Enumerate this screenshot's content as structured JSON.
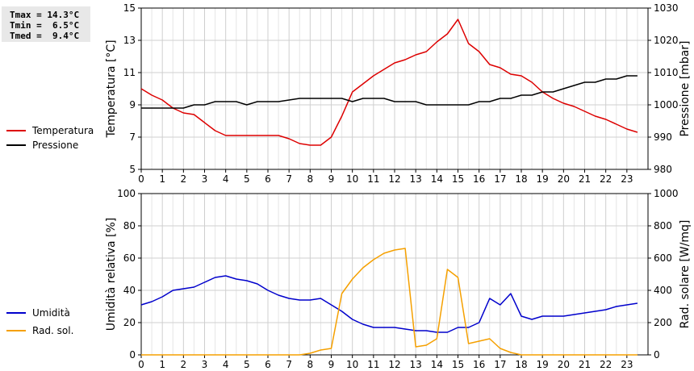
{
  "stats": {
    "tmax": "Tmax = 14.3°C",
    "tmin": "Tmin =  6.5°C",
    "tmed": "Tmed =  9.4°C"
  },
  "legend_top": [
    {
      "label": "Temperatura",
      "color": "#dd0000"
    },
    {
      "label": "Pressione",
      "color": "#000000"
    }
  ],
  "legend_bottom": [
    {
      "label": "Umidità",
      "color": "#0000cc"
    },
    {
      "label": "Rad. sol.",
      "color": "#f5a000"
    }
  ],
  "chart_data": [
    {
      "type": "line",
      "xlabel": "",
      "ylabel": "Temperatura [°C]",
      "y2label": "Pressione [mbar]",
      "xlim": [
        0,
        24
      ],
      "ylim": [
        5,
        15
      ],
      "y2lim": [
        980,
        1030
      ],
      "xticks": [
        "0",
        "1",
        "2",
        "3",
        "4",
        "5",
        "6",
        "7",
        "8",
        "9",
        "10",
        "11",
        "12",
        "13",
        "14",
        "15",
        "16",
        "17",
        "18",
        "19",
        "20",
        "21",
        "22",
        "23"
      ],
      "yticks": [
        "5",
        "7",
        "9",
        "11",
        "13",
        "15"
      ],
      "y2ticks": [
        "980",
        "990",
        "1000",
        "1010",
        "1020",
        "1030"
      ],
      "grid": true,
      "series": [
        {
          "name": "Temperatura",
          "axis": "left",
          "color": "#dd0000",
          "x": [
            0,
            0.5,
            1,
            1.5,
            2,
            2.5,
            3,
            3.5,
            4,
            4.5,
            5,
            5.5,
            6,
            6.5,
            7,
            7.5,
            8,
            8.5,
            9,
            9.5,
            10,
            10.5,
            11,
            11.5,
            12,
            12.5,
            13,
            13.5,
            14,
            14.5,
            15,
            15.5,
            16,
            16.5,
            17,
            17.5,
            18,
            18.5,
            19,
            19.5,
            20,
            20.5,
            21,
            21.5,
            22,
            22.5,
            23,
            23.5
          ],
          "y": [
            10.0,
            9.6,
            9.3,
            8.8,
            8.5,
            8.4,
            7.9,
            7.4,
            7.1,
            7.1,
            7.1,
            7.1,
            7.1,
            7.1,
            6.9,
            6.6,
            6.5,
            6.5,
            7.0,
            8.3,
            9.8,
            10.3,
            10.8,
            11.2,
            11.6,
            11.8,
            12.1,
            12.3,
            12.9,
            13.4,
            14.3,
            12.8,
            12.3,
            11.5,
            11.3,
            10.9,
            10.8,
            10.4,
            9.8,
            9.4,
            9.1,
            8.9,
            8.6,
            8.3,
            8.1,
            7.8,
            7.5,
            7.3
          ]
        },
        {
          "name": "Pressione",
          "axis": "right",
          "color": "#000000",
          "x": [
            0,
            0.5,
            1,
            1.5,
            2,
            2.5,
            3,
            3.5,
            4,
            4.5,
            5,
            5.5,
            6,
            6.5,
            7,
            7.5,
            8,
            8.5,
            9,
            9.5,
            10,
            10.5,
            11,
            11.5,
            12,
            12.5,
            13,
            13.5,
            14,
            14.5,
            15,
            15.5,
            16,
            16.5,
            17,
            17.5,
            18,
            18.5,
            19,
            19.5,
            20,
            20.5,
            21,
            21.5,
            22,
            22.5,
            23,
            23.5
          ],
          "y": [
            999,
            999,
            999,
            999,
            999,
            1000,
            1000,
            1001,
            1001,
            1001,
            1000,
            1001,
            1001,
            1001,
            1001.5,
            1002,
            1002,
            1002,
            1002,
            1002,
            1001,
            1002,
            1002,
            1002,
            1001,
            1001,
            1001,
            1000,
            1000,
            1000,
            1000,
            1000,
            1001,
            1001,
            1002,
            1002,
            1003,
            1003,
            1004,
            1004,
            1005,
            1006,
            1007,
            1007,
            1008,
            1008,
            1009,
            1009
          ]
        }
      ]
    },
    {
      "type": "line",
      "xlabel": "",
      "ylabel": "Umidità relativa [%]",
      "y2label": "Rad. solare [W/mq]",
      "xlim": [
        0,
        24
      ],
      "ylim": [
        0,
        100
      ],
      "y2lim": [
        0,
        1000
      ],
      "xticks": [
        "0",
        "1",
        "2",
        "3",
        "4",
        "5",
        "6",
        "7",
        "8",
        "9",
        "10",
        "11",
        "12",
        "13",
        "14",
        "15",
        "16",
        "17",
        "18",
        "19",
        "20",
        "21",
        "22",
        "23"
      ],
      "yticks": [
        "0",
        "20",
        "40",
        "60",
        "80",
        "100"
      ],
      "y2ticks": [
        "0",
        "200",
        "400",
        "600",
        "800",
        "1000"
      ],
      "grid": true,
      "series": [
        {
          "name": "Umidità",
          "axis": "left",
          "color": "#0000cc",
          "x": [
            0,
            0.5,
            1,
            1.5,
            2,
            2.5,
            3,
            3.5,
            4,
            4.5,
            5,
            5.5,
            6,
            6.5,
            7,
            7.5,
            8,
            8.5,
            9,
            9.5,
            10,
            10.5,
            11,
            11.5,
            12,
            12.5,
            13,
            13.5,
            14,
            14.5,
            15,
            15.5,
            16,
            16.5,
            17,
            17.5,
            18,
            18.5,
            19,
            19.5,
            20,
            20.5,
            21,
            21.5,
            22,
            22.5,
            23,
            23.5
          ],
          "y": [
            31,
            33,
            36,
            40,
            41,
            42,
            45,
            48,
            49,
            47,
            46,
            44,
            40,
            37,
            35,
            34,
            34,
            35,
            31,
            27,
            22,
            19,
            17,
            17,
            17,
            16,
            15,
            15,
            14,
            14,
            17,
            17,
            20,
            35,
            31,
            38,
            24,
            22,
            24,
            24,
            24,
            25,
            26,
            27,
            28,
            30,
            31,
            32
          ]
        },
        {
          "name": "Rad. sol.",
          "axis": "right",
          "color": "#f5a000",
          "x": [
            0,
            1,
            2,
            3,
            4,
            5,
            6,
            7,
            7.5,
            8,
            8.5,
            9,
            9.5,
            10,
            10.5,
            11,
            11.5,
            12,
            12.5,
            13,
            13.5,
            14,
            14.5,
            15,
            15.5,
            16,
            16.5,
            17,
            17.5,
            18,
            18.5,
            19,
            20,
            21,
            22,
            23,
            23.5
          ],
          "y": [
            0,
            0,
            0,
            0,
            0,
            0,
            0,
            0,
            0,
            10,
            30,
            40,
            380,
            470,
            540,
            590,
            630,
            650,
            660,
            50,
            60,
            100,
            530,
            480,
            70,
            85,
            100,
            40,
            15,
            0,
            0,
            0,
            0,
            0,
            0,
            0,
            0
          ]
        }
      ]
    }
  ]
}
